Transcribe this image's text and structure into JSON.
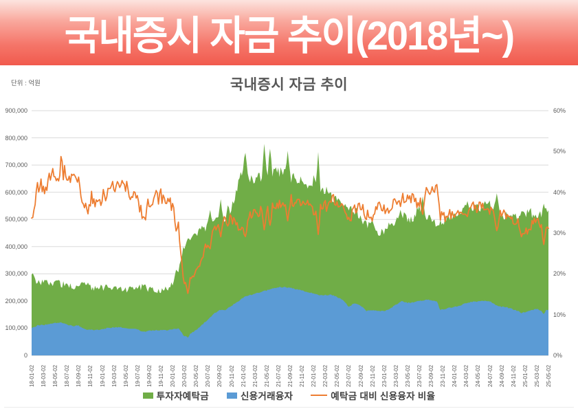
{
  "banner": {
    "title": "국내증시 자금 추이(2018년~)"
  },
  "chart": {
    "title": "국내증시 자금 추이",
    "unit_label": "단위 : 억원",
    "colors": {
      "deposits": "#70ad47",
      "loans": "#5b9bd5",
      "ratio": "#ed7d31",
      "grid": "#dadada",
      "axis_text": "#595959"
    },
    "legend": [
      {
        "label": "투자자예탁금",
        "color": "#70ad47",
        "marker": "area"
      },
      {
        "label": "신용거래융자",
        "color": "#5b9bd5",
        "marker": "area"
      },
      {
        "label": "예탁금 대비 신용융자 비율",
        "color": "#ed7d31",
        "marker": "line"
      }
    ]
  },
  "chart_data": {
    "type": "area",
    "title": "국내증시 자금 추이",
    "unit": "억원",
    "grid": "horizontal",
    "legend_position": "bottom",
    "left_axis": {
      "min": 0,
      "max": 900000,
      "tick_labels": [
        "0",
        "100,000",
        "200,000",
        "300,000",
        "400,000",
        "500,000",
        "600,000",
        "700,000",
        "800,000",
        "900,000"
      ]
    },
    "right_axis": {
      "min": 0,
      "max": 60,
      "tick_labels": [
        "0%",
        "10%",
        "20%",
        "30%",
        "40%",
        "50%",
        "60%"
      ]
    },
    "x_axis": {
      "tick_labels": [
        "18-01-02",
        "18-03-02",
        "18-05-02",
        "18-07-02",
        "18-09-02",
        "18-11-02",
        "19-01-02",
        "19-03-02",
        "19-05-02",
        "19-07-02",
        "19-09-02",
        "19-11-02",
        "20-01-02",
        "20-03-02",
        "20-05-02",
        "20-07-02",
        "20-09-02",
        "20-11-02",
        "21-01-02",
        "21-03-02",
        "21-05-02",
        "21-07-02",
        "21-09-02",
        "21-11-02",
        "22-01-02",
        "22-03-02",
        "22-05-02",
        "22-07-02",
        "22-09-02",
        "22-11-02",
        "23-01-02",
        "23-03-02",
        "23-05-02",
        "23-07-02",
        "23-09-02",
        "23-11-02",
        "24-01-02",
        "24-03-02",
        "24-05-02",
        "24-07-02",
        "24-09-02",
        "24-11-02",
        "25-01-02",
        "25-03-02",
        "25-05-02"
      ]
    },
    "anchor_months": [
      "18-01",
      "18-02",
      "18-03",
      "18-04",
      "18-05",
      "18-06",
      "18-07",
      "18-08",
      "18-09",
      "18-10",
      "18-11",
      "18-12",
      "19-01",
      "19-02",
      "19-03",
      "19-04",
      "19-05",
      "19-06",
      "19-07",
      "19-08",
      "19-09",
      "19-10",
      "19-11",
      "19-12",
      "20-01",
      "20-02",
      "20-03",
      "20-04",
      "20-05",
      "20-06",
      "20-07",
      "20-08",
      "20-09",
      "20-10",
      "20-11",
      "20-12",
      "21-01",
      "21-02",
      "21-03",
      "21-04",
      "21-05",
      "21-06",
      "21-07",
      "21-08",
      "21-09",
      "21-10",
      "21-11",
      "21-12",
      "22-01",
      "22-02",
      "22-03",
      "22-04",
      "22-05",
      "22-06",
      "22-07",
      "22-08",
      "22-09",
      "22-10",
      "22-11",
      "22-12",
      "23-01",
      "23-02",
      "23-03",
      "23-04",
      "23-05",
      "23-06",
      "23-07",
      "23-08",
      "23-09",
      "23-10",
      "23-11",
      "23-12",
      "24-01",
      "24-02",
      "24-03",
      "24-04",
      "24-05",
      "24-06",
      "24-07",
      "24-08",
      "24-09",
      "24-10",
      "24-11",
      "24-12",
      "25-01",
      "25-02",
      "25-03",
      "25-04",
      "25-05"
    ],
    "series": [
      {
        "name": "투자자예탁금",
        "type": "area",
        "axis": "left",
        "color": "#70ad47",
        "values": [
          295000,
          272000,
          268000,
          270000,
          268000,
          264000,
          256000,
          253000,
          258000,
          262000,
          251000,
          246000,
          250000,
          247000,
          249000,
          246000,
          243000,
          244000,
          247000,
          254000,
          244000,
          241000,
          239000,
          246000,
          268000,
          300000,
          405000,
          432000,
          438000,
          462000,
          478000,
          490000,
          492000,
          498000,
          540000,
          608000,
          700000,
          655000,
          642000,
          658000,
          667000,
          678000,
          675000,
          668000,
          655000,
          648000,
          638000,
          628000,
          645000,
          598000,
          608000,
          588000,
          566000,
          548000,
          528000,
          535000,
          505000,
          478000,
          488000,
          452000,
          462000,
          478000,
          495000,
          528000,
          498000,
          510000,
          542000,
          512000,
          496000,
          478000,
          488000,
          508000,
          520000,
          538000,
          558000,
          548000,
          544000,
          548000,
          558000,
          538000,
          521000,
          511000,
          504000,
          509000,
          519000,
          524000,
          509000,
          528000,
          548000
        ]
      },
      {
        "name": "신용거래융자",
        "type": "area",
        "axis": "left",
        "color": "#5b9bd5",
        "values": [
          100000,
          110000,
          112000,
          115000,
          119000,
          122000,
          114000,
          108000,
          110000,
          97000,
          94000,
          93000,
          97000,
          101000,
          103000,
          104000,
          101000,
          99000,
          96000,
          86000,
          91000,
          93000,
          93000,
          93000,
          96000,
          101000,
          70000,
          80000,
          93000,
          112000,
          132000,
          152000,
          168000,
          167000,
          182000,
          196000,
          212000,
          221000,
          226000,
          233000,
          239000,
          246000,
          250000,
          251000,
          249000,
          243000,
          239000,
          233000,
          228000,
          220000,
          222000,
          223000,
          215000,
          203000,
          179000,
          192000,
          184000,
          164000,
          166000,
          164000,
          162000,
          171000,
          186000,
          200000,
          193000,
          196000,
          200000,
          204000,
          204000,
          197000,
          168000,
          175000,
          178000,
          183000,
          193000,
          197000,
          198000,
          200000,
          199000,
          186000,
          179000,
          176000,
          169000,
          161000,
          157000,
          165000,
          171000,
          163000,
          169000
        ]
      },
      {
        "name": "예탁금 대비 신용융자 비율",
        "type": "line",
        "axis": "right",
        "color": "#ed7d31",
        "derived": "loans / deposits * 100"
      }
    ],
    "events": [
      {
        "pos": 9.5,
        "deposit": 268000,
        "loan": 94000
      },
      {
        "pos": 24.6,
        "deposit": 315000,
        "loan": 97000
      },
      {
        "pos": 26.5,
        "deposit": 430000,
        "loan": 65000
      },
      {
        "pos": 30.3,
        "deposit": 535000
      },
      {
        "pos": 32.2,
        "deposit": 575000
      },
      {
        "pos": 33.4,
        "deposit": 552000
      },
      {
        "pos": 36.4,
        "deposit": 745000
      },
      {
        "pos": 39.6,
        "deposit": 778000
      },
      {
        "pos": 40.6,
        "deposit": 760000
      },
      {
        "pos": 43.6,
        "deposit": 752000
      },
      {
        "pos": 48.8,
        "deposit": 748000
      },
      {
        "pos": 66.6,
        "deposit": 585000
      },
      {
        "pos": 69.6,
        "loan": 166000
      },
      {
        "pos": 79.15,
        "deposit": 596000
      },
      {
        "pos": 83.3,
        "deposit": 530000,
        "loan": 155000
      },
      {
        "pos": 87.25,
        "deposit": 558000,
        "loan": 152000
      }
    ]
  }
}
